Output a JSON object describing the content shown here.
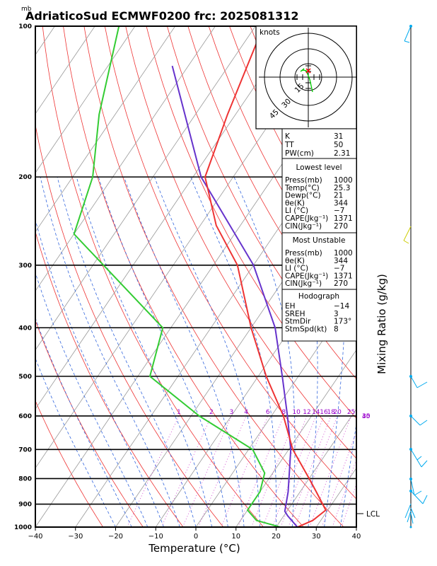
{
  "title": "AdriaticoSud ECMWF0200 frc: 2025081312",
  "unit_label": "mb",
  "x_axis_label": "Temperature (°C)",
  "mixing_ratio_axis_label": "Mixing Ratio (g/kg)",
  "hodograph": {
    "unit_label": "knots",
    "ring_labels": [
      "15",
      "30",
      "45"
    ]
  },
  "indices": {
    "k": {
      "label": "K",
      "value": "31"
    },
    "tt": {
      "label": "TT",
      "value": "50"
    },
    "pw": {
      "label": "PW(cm)",
      "value": "2.31"
    }
  },
  "lowest_level": {
    "header": "Lowest level",
    "rows": [
      {
        "label": "Press(mb)",
        "value": "1000"
      },
      {
        "label": "Temp(°C)",
        "value": "25.3"
      },
      {
        "label": "Dewp(°C)",
        "value": "21"
      },
      {
        "label": "θe(K)",
        "value": "344"
      },
      {
        "label": "LI (°C)",
        "value": "−7"
      },
      {
        "label": "CAPE(Jkg⁻¹)",
        "value": "1371"
      },
      {
        "label": "CIN(Jkg⁻¹)",
        "value": "270"
      }
    ]
  },
  "most_unstable": {
    "header": "Most Unstable",
    "rows": [
      {
        "label": "Press(mb)",
        "value": "1000"
      },
      {
        "label": "θe(K)",
        "value": "344"
      },
      {
        "label": "LI (°C)",
        "value": "−7"
      },
      {
        "label": "CAPE(Jkg⁻¹)",
        "value": "1371"
      },
      {
        "label": "CIN(Jkg⁻¹)",
        "value": "270"
      }
    ]
  },
  "hodograph_params": {
    "header": "Hodograph",
    "rows": [
      {
        "label": "EH",
        "value": "−14"
      },
      {
        "label": "SREH",
        "value": "3"
      },
      {
        "label": "StmDir",
        "value": "173°"
      },
      {
        "label": "StmSpd(kt)",
        "value": "8"
      }
    ]
  },
  "lcl_label": "LCL",
  "chart_data": {
    "type": "skew-t log-p",
    "x_ticks": [
      "−40",
      "−30",
      "−20",
      "−10",
      "0",
      "10",
      "20",
      "30",
      "40"
    ],
    "x_tick_values": [
      -40,
      -30,
      -20,
      -10,
      0,
      10,
      20,
      30,
      40
    ],
    "pressure_ticks": [
      "100",
      "200",
      "300",
      "400",
      "500",
      "600",
      "700",
      "800",
      "900",
      "1000"
    ],
    "pressure_values": [
      100,
      200,
      300,
      400,
      500,
      600,
      700,
      800,
      900,
      1000
    ],
    "pressure_range_hpa": [
      1000,
      100
    ],
    "temperature_range_c": [
      -40,
      40
    ],
    "mixing_ratio_labels": [
      "1",
      "2",
      "3",
      "4",
      "6",
      "8",
      "10",
      "12",
      "14",
      "16",
      "18",
      "20",
      "25",
      "30",
      "35",
      "40"
    ],
    "temperature_profile": [
      {
        "p": 1000,
        "t": 25.3
      },
      {
        "p": 970,
        "t": 28
      },
      {
        "p": 925,
        "t": 29.5
      },
      {
        "p": 850,
        "t": 24
      },
      {
        "p": 800,
        "t": 20
      },
      {
        "p": 700,
        "t": 11
      },
      {
        "p": 600,
        "t": 3
      },
      {
        "p": 500,
        "t": -8
      },
      {
        "p": 400,
        "t": -20
      },
      {
        "p": 300,
        "t": -34
      },
      {
        "p": 250,
        "t": -46
      },
      {
        "p": 200,
        "t": -57
      },
      {
        "p": 150,
        "t": -62
      },
      {
        "p": 100,
        "t": -68
      }
    ],
    "dewpoint_profile": [
      {
        "p": 1000,
        "t": 21
      },
      {
        "p": 970,
        "t": 14
      },
      {
        "p": 925,
        "t": 10
      },
      {
        "p": 850,
        "t": 10
      },
      {
        "p": 780,
        "t": 8
      },
      {
        "p": 700,
        "t": 1
      },
      {
        "p": 600,
        "t": -18
      },
      {
        "p": 500,
        "t": -37
      },
      {
        "p": 400,
        "t": -42
      },
      {
        "p": 260,
        "t": -80
      },
      {
        "p": 200,
        "t": -85
      },
      {
        "p": 150,
        "t": -94
      },
      {
        "p": 100,
        "t": -104
      }
    ],
    "parcel_profile": [
      {
        "p": 1000,
        "t": 25.3
      },
      {
        "p": 950,
        "t": 21
      },
      {
        "p": 930,
        "t": 19.5
      },
      {
        "p": 850,
        "t": 17
      },
      {
        "p": 700,
        "t": 10.5
      },
      {
        "p": 600,
        "t": 4
      },
      {
        "p": 500,
        "t": -4
      },
      {
        "p": 400,
        "t": -14
      },
      {
        "p": 300,
        "t": -30
      },
      {
        "p": 200,
        "t": -58
      },
      {
        "p": 120,
        "t": -84
      }
    ],
    "lcl_pressure": 940
  }
}
